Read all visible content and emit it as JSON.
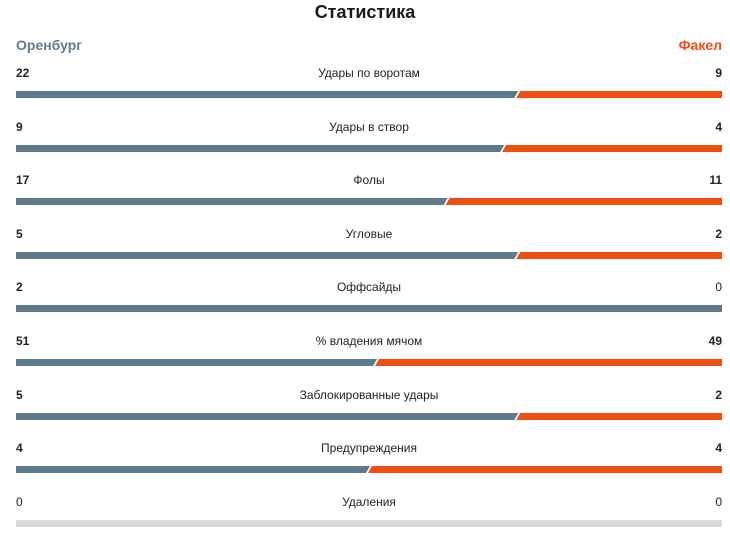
{
  "title": "Статистика",
  "teams": {
    "home": "Оренбург",
    "away": "Факел"
  },
  "colors": {
    "home": "#5e7a8c",
    "away": "#f04d12",
    "empty": "#d8dadd",
    "text": "#222222"
  },
  "stats": [
    {
      "label": "Удары по воротам",
      "home": "22",
      "away": "9",
      "home_share": 0.71
    },
    {
      "label": "Удары в створ",
      "home": "9",
      "away": "4",
      "home_share": 0.69
    },
    {
      "label": "Фолы",
      "home": "17",
      "away": "11",
      "home_share": 0.61
    },
    {
      "label": "Угловые",
      "home": "5",
      "away": "2",
      "home_share": 0.71
    },
    {
      "label": "Оффсайды",
      "home": "2",
      "away": "0",
      "home_share": 1.0
    },
    {
      "label": "% владения мячом",
      "home": "51",
      "away": "49",
      "home_share": 0.51
    },
    {
      "label": "Заблокированные удары",
      "home": "5",
      "away": "2",
      "home_share": 0.71
    },
    {
      "label": "Предупреждения",
      "home": "4",
      "away": "4",
      "home_share": 0.5
    },
    {
      "label": "Удаления",
      "home": "0",
      "away": "0",
      "home_share": null
    }
  ]
}
